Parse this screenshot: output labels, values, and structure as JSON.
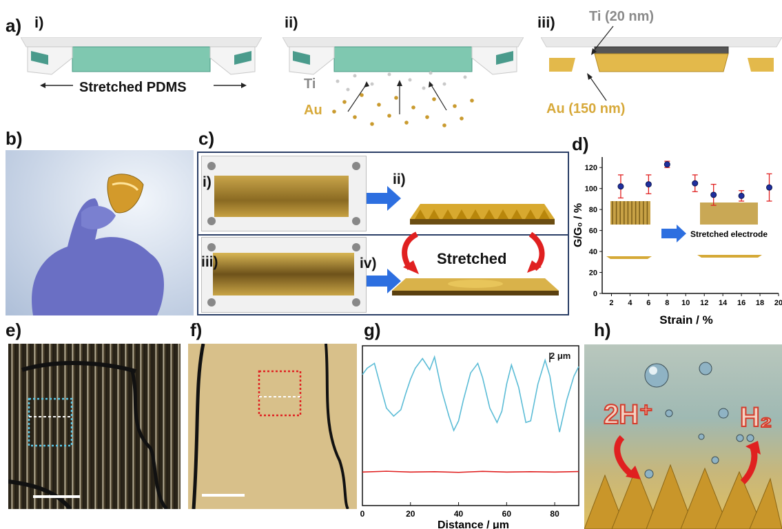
{
  "panels": {
    "a": {
      "label": "a)",
      "sub": [
        "i)",
        "ii)",
        "iii)"
      ],
      "stretched": "Stretched PDMS",
      "ti": "Ti",
      "au": "Au",
      "ti_thick": "Ti (20 nm)",
      "au_thick": "Au (150 nm)"
    },
    "b": {
      "label": "b)"
    },
    "c": {
      "label": "c)",
      "sub": [
        "i)",
        "ii)",
        "iii)",
        "iv)"
      ],
      "stretched": "Stretched"
    },
    "d": {
      "label": "d)",
      "inset_text": "Stretched electrode"
    },
    "e": {
      "label": "e)"
    },
    "f": {
      "label": "f)"
    },
    "g": {
      "label": "g)",
      "scale": "2 μm"
    },
    "h": {
      "label": "h)",
      "left_text": "2H⁺",
      "right_text": "H₂"
    }
  },
  "chart_data": [
    {
      "type": "scatter",
      "panel": "d",
      "xlabel": "Strain / %",
      "ylabel": "G/G₀ / %",
      "xlim": [
        1,
        20
      ],
      "ylim": [
        0,
        130
      ],
      "xticks": [
        2,
        4,
        6,
        8,
        10,
        12,
        14,
        16,
        18,
        20
      ],
      "yticks": [
        0,
        20,
        40,
        60,
        80,
        100,
        120
      ],
      "xtick_labels": [
        "2",
        "4",
        "6",
        "8",
        "10",
        "12",
        "14",
        "16",
        "18",
        "20"
      ],
      "ytick_labels": [
        "0",
        "20",
        "40",
        "60",
        "80",
        "100",
        "120"
      ],
      "points": [
        {
          "x": 3,
          "y": 102,
          "err": 11
        },
        {
          "x": 6,
          "y": 104,
          "err": 9
        },
        {
          "x": 8,
          "y": 123,
          "err": 3
        },
        {
          "x": 11,
          "y": 105,
          "err": 8
        },
        {
          "x": 13,
          "y": 94,
          "err": 10
        },
        {
          "x": 16,
          "y": 93,
          "err": 5
        },
        {
          "x": 19,
          "y": 101,
          "err": 13
        }
      ],
      "marker_color": "#1f2f9e",
      "error_color": "#e02020"
    },
    {
      "type": "line",
      "panel": "g",
      "xlabel": "Distance / μm",
      "xlim": [
        0,
        90
      ],
      "xticks": [
        0,
        20,
        40,
        60,
        80
      ],
      "xtick_labels": [
        "0",
        "20",
        "40",
        "60",
        "80"
      ],
      "ylim": [
        0,
        10
      ],
      "series": [
        {
          "color": "#5bbcd6",
          "x": [
            0,
            2,
            5,
            8,
            10,
            13,
            16,
            18,
            20,
            22,
            25,
            28,
            30,
            33,
            36,
            38,
            40,
            42,
            45,
            48,
            50,
            53,
            56,
            58,
            60,
            62,
            65,
            68,
            70,
            73,
            76,
            78,
            80,
            82,
            85,
            88,
            90
          ],
          "y": [
            8.2,
            8.6,
            8.9,
            7.2,
            6.1,
            5.6,
            6.0,
            7.0,
            7.9,
            8.6,
            9.2,
            8.5,
            9.3,
            7.2,
            5.6,
            4.7,
            5.3,
            6.6,
            8.3,
            8.9,
            8.0,
            6.1,
            5.2,
            5.9,
            7.6,
            8.8,
            7.4,
            5.2,
            5.3,
            7.6,
            9.1,
            8.1,
            6.2,
            4.6,
            6.6,
            8.1,
            8.7
          ]
        },
        {
          "color": "#e02020",
          "x": [
            0,
            10,
            20,
            30,
            40,
            50,
            60,
            70,
            80,
            90
          ],
          "y": [
            2.1,
            2.15,
            2.1,
            2.12,
            2.08,
            2.14,
            2.1,
            2.12,
            2.1,
            2.13
          ]
        }
      ]
    }
  ]
}
